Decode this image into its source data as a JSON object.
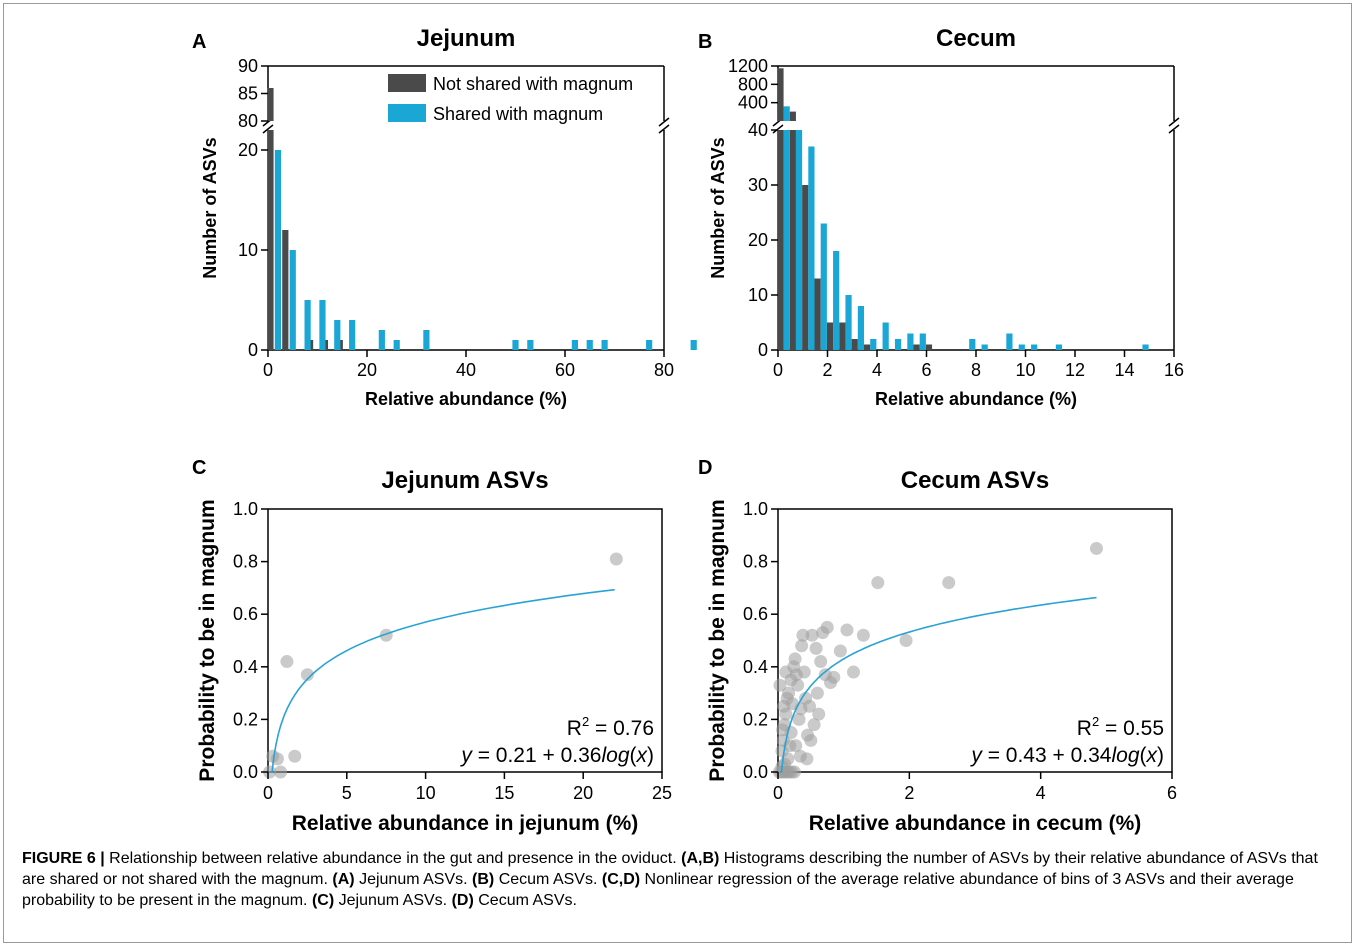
{
  "figure_number": "FIGURE 6 |",
  "caption": {
    "p1": "Relationship between relative abundance in the gut and presence in the oviduct.",
    "l1": "(A,B)",
    "p2": "Histograms describing the number of ASVs by their relative abundance of ASVs that are shared or not shared with the magnum.",
    "l2": "(A)",
    "p3": "Jejunum ASVs.",
    "l3": "(B)",
    "p4": "Cecum ASVs.",
    "l4": "(C,D)",
    "p5": "Nonlinear regression of the average relative abundance of bins of 3 ASVs and their average probability to be present in the magnum.",
    "l5": "(C)",
    "p6": "Jejunum ASVs.",
    "l6": "(D)",
    "p7": "Cecum ASVs."
  },
  "colors": {
    "not_shared": "#4a4a4a",
    "shared": "#1ba7d6",
    "scatter": "#9e9e9e",
    "fit": "#2aa3d4"
  },
  "chart_data": [
    {
      "panel": "A",
      "type": "bar",
      "title": "Jejunum",
      "xlabel": "Relative abundance (%)",
      "ylabel": "Number of ASVs",
      "xlim": [
        0,
        80
      ],
      "xticks": [
        0,
        20,
        40,
        60,
        80
      ],
      "ylim_lower": [
        0,
        22
      ],
      "yticks_lower": [
        0,
        10,
        20
      ],
      "ylim_upper": [
        80,
        90
      ],
      "yticks_upper": [
        80,
        85,
        90
      ],
      "legend": [
        "Not shared with magnum",
        "Shared with magnum"
      ],
      "legend_position": "top-right",
      "series": [
        {
          "name": "Not shared with magnum",
          "x": [
            0.5,
            3.5,
            8.5,
            11.5,
            14.5
          ],
          "y": [
            86,
            12,
            1,
            1,
            1
          ]
        },
        {
          "name": "Shared with magnum",
          "x": [
            2,
            5,
            8,
            11,
            14,
            17,
            23,
            26,
            32,
            50,
            53,
            62,
            65,
            68,
            77,
            86
          ],
          "y": [
            20,
            10,
            5,
            5,
            3,
            3,
            2,
            1,
            2,
            1,
            1,
            1,
            1,
            1,
            1,
            1
          ]
        }
      ]
    },
    {
      "panel": "B",
      "type": "bar",
      "title": "Cecum",
      "xlabel": "Relative abundance (%)",
      "ylabel": "Number of ASVs",
      "xlim": [
        0,
        16
      ],
      "xticks": [
        0,
        2,
        4,
        6,
        8,
        10,
        12,
        14,
        16
      ],
      "ylim_lower": [
        0,
        40
      ],
      "yticks_lower": [
        0,
        10,
        20,
        30,
        40
      ],
      "ylim_upper": [
        0,
        1200
      ],
      "yticks_upper": [
        400,
        800,
        1200
      ],
      "series": [
        {
          "name": "Not shared with magnum",
          "x": [
            0.1,
            0.6,
            1.1,
            1.6,
            2.1,
            2.6,
            3.1,
            3.6,
            4.1,
            4.6,
            5.1,
            5.6,
            6.1
          ],
          "y": [
            1150,
            205,
            30,
            13,
            5,
            5,
            2,
            1,
            0,
            0,
            0,
            1,
            1
          ]
        },
        {
          "name": "Shared with magnum",
          "x": [
            0.35,
            0.85,
            1.35,
            1.85,
            2.35,
            2.85,
            3.35,
            3.85,
            4.35,
            4.85,
            5.35,
            5.85,
            6.35,
            6.85,
            7.85,
            8.35,
            9.35,
            9.85,
            10.35,
            11.35,
            14.85
          ],
          "y": [
            320,
            40,
            37,
            23,
            18,
            10,
            8,
            2,
            5,
            2,
            3,
            3,
            0,
            0,
            2,
            1,
            3,
            1,
            1,
            1,
            1
          ]
        }
      ]
    },
    {
      "panel": "C",
      "type": "scatter",
      "title": "Jejunum ASVs",
      "xlabel": "Relative abundance in jejunum (%)",
      "ylabel": "Probability to be in magnum",
      "xlim": [
        0,
        25
      ],
      "xticks": [
        0,
        5,
        10,
        15,
        20,
        25
      ],
      "ylim": [
        0,
        1
      ],
      "yticks": [
        "0.0",
        "0.2",
        "0.4",
        "0.6",
        "0.8",
        "1.0"
      ],
      "r2_label": "R",
      "r2_value": "= 0.76",
      "equation": [
        "y",
        " = 0.21 + 0.36",
        "log",
        "(",
        "x",
        ")"
      ],
      "points": [
        [
          0.1,
          0.0
        ],
        [
          0.3,
          0.06
        ],
        [
          0.6,
          0.05
        ],
        [
          0.8,
          0.0
        ],
        [
          1.2,
          0.42
        ],
        [
          1.7,
          0.06
        ],
        [
          2.5,
          0.37
        ],
        [
          7.5,
          0.52
        ],
        [
          22.1,
          0.81
        ]
      ],
      "fit": {
        "a": 0.21,
        "b": 0.36,
        "x_range": [
          0.06,
          22
        ]
      }
    },
    {
      "panel": "D",
      "type": "scatter",
      "title": "Cecum ASVs",
      "xlabel": "Relative abundance in cecum (%)",
      "ylabel": "Probability to be in magnum",
      "xlim": [
        0,
        6
      ],
      "xticks": [
        0,
        2,
        4,
        6
      ],
      "ylim": [
        0,
        1
      ],
      "yticks": [
        "0.0",
        "0.2",
        "0.4",
        "0.6",
        "0.8",
        "1.0"
      ],
      "r2_label": "R",
      "r2_value": "= 0.55",
      "equation": [
        "y",
        " = 0.43 + 0.34",
        "log",
        "(",
        "x",
        ")"
      ],
      "points": [
        [
          0.02,
          0.0
        ],
        [
          0.05,
          0.0
        ],
        [
          0.08,
          0.0
        ],
        [
          0.11,
          0.0
        ],
        [
          0.14,
          0.0
        ],
        [
          0.17,
          0.0
        ],
        [
          0.21,
          0.0
        ],
        [
          0.25,
          0.0
        ],
        [
          0.06,
          0.02
        ],
        [
          0.1,
          0.03
        ],
        [
          0.03,
          0.33
        ],
        [
          0.06,
          0.08
        ],
        [
          0.08,
          0.12
        ],
        [
          0.1,
          0.18
        ],
        [
          0.12,
          0.22
        ],
        [
          0.14,
          0.28
        ],
        [
          0.16,
          0.3
        ],
        [
          0.18,
          0.1
        ],
        [
          0.2,
          0.15
        ],
        [
          0.22,
          0.26
        ],
        [
          0.24,
          0.4
        ],
        [
          0.26,
          0.43
        ],
        [
          0.28,
          0.37
        ],
        [
          0.3,
          0.33
        ],
        [
          0.32,
          0.2
        ],
        [
          0.34,
          0.06
        ],
        [
          0.36,
          0.48
        ],
        [
          0.38,
          0.52
        ],
        [
          0.4,
          0.38
        ],
        [
          0.42,
          0.28
        ],
        [
          0.45,
          0.14
        ],
        [
          0.48,
          0.25
        ],
        [
          0.5,
          0.12
        ],
        [
          0.52,
          0.52
        ],
        [
          0.55,
          0.18
        ],
        [
          0.58,
          0.47
        ],
        [
          0.6,
          0.3
        ],
        [
          0.62,
          0.22
        ],
        [
          0.65,
          0.42
        ],
        [
          0.68,
          0.53
        ],
        [
          0.72,
          0.37
        ],
        [
          0.75,
          0.55
        ],
        [
          0.8,
          0.34
        ],
        [
          0.85,
          0.36
        ],
        [
          0.95,
          0.46
        ],
        [
          1.05,
          0.54
        ],
        [
          1.15,
          0.38
        ],
        [
          1.3,
          0.52
        ],
        [
          1.52,
          0.72
        ],
        [
          1.95,
          0.5
        ],
        [
          2.6,
          0.72
        ],
        [
          4.85,
          0.85
        ],
        [
          0.15,
          0.05
        ],
        [
          0.12,
          0.38
        ],
        [
          0.2,
          0.35
        ],
        [
          0.27,
          0.1
        ],
        [
          0.35,
          0.24
        ],
        [
          0.44,
          0.05
        ],
        [
          0.07,
          0.16
        ],
        [
          0.09,
          0.25
        ]
      ],
      "fit": {
        "a": 0.43,
        "b": 0.34,
        "x_range": [
          0.03,
          4.85
        ]
      }
    }
  ]
}
